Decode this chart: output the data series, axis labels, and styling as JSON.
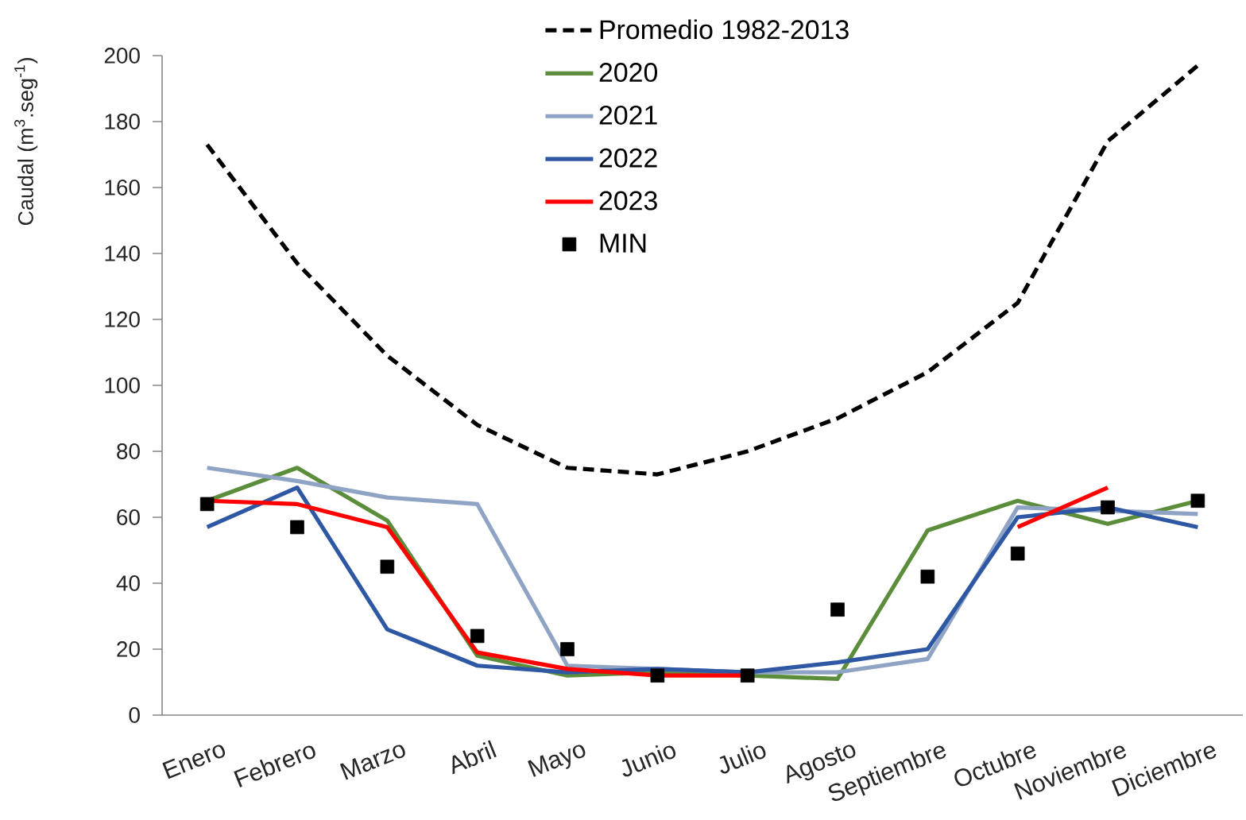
{
  "chart_data": {
    "type": "line",
    "ylabel": "Caudal (m$^{3}$.seg$^{-1}$)",
    "categories": [
      "Enero",
      "Febrero",
      "Marzo",
      "Abril",
      "Mayo",
      "Junio",
      "Julio",
      "Agosto",
      "Septiembre",
      "Octubre",
      "Noviembre",
      "Diciembre"
    ],
    "ylim": [
      0,
      200
    ],
    "yticks": [
      0,
      20,
      40,
      60,
      80,
      100,
      120,
      140,
      160,
      180,
      200
    ],
    "legend": "top",
    "series": [
      {
        "name": "Promedio 1982-2013",
        "color": "#000000",
        "line_style": "dashed",
        "values": [
          173,
          137,
          109,
          88,
          75,
          73,
          80,
          90,
          104,
          125,
          174,
          197
        ]
      },
      {
        "name": "2020",
        "color": "#5b8d3a",
        "values": [
          65,
          75,
          59,
          18,
          12,
          13,
          12,
          11,
          56,
          65,
          58,
          65
        ]
      },
      {
        "name": "2021",
        "color": "#8fa3c4",
        "values": [
          75,
          71,
          66,
          64,
          15,
          14,
          13,
          13,
          17,
          63,
          62,
          61
        ]
      },
      {
        "name": "2022",
        "color": "#2f58a4",
        "values": [
          57,
          69,
          26,
          15,
          13,
          14,
          13,
          16,
          20,
          60,
          63,
          57
        ]
      },
      {
        "name": "2023",
        "color": "#ff0000",
        "values": [
          65,
          64,
          57,
          19,
          14,
          12,
          12,
          null,
          null,
          57,
          69,
          null
        ]
      },
      {
        "name": "MIN",
        "type": "scatter",
        "marker": "square",
        "color": "#000000",
        "values": [
          64,
          57,
          45,
          24,
          20,
          12,
          12,
          32,
          42,
          49,
          63,
          65
        ]
      }
    ]
  }
}
